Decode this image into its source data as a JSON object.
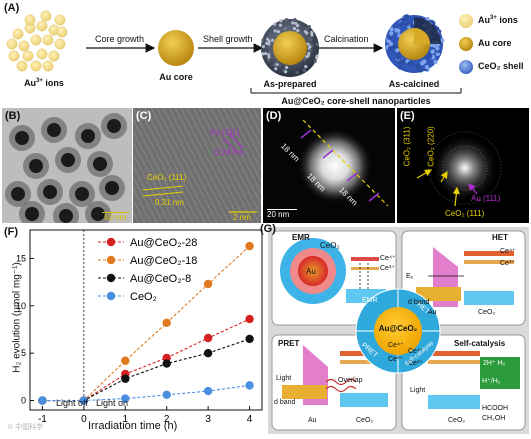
{
  "panel_a": {
    "label": "(A)",
    "au_ions": {
      "text": "Au",
      "sup": "3+",
      "rest": " ions"
    },
    "au_core": "Au core",
    "as_prepared": "As-prepared",
    "as_calcined": "As-calcined",
    "step1": "Core growth",
    "step2": "Shell growth",
    "step3": "Calcination",
    "bracket_caption": "Au@CeO₂ core-shell nanoparticles",
    "legend": [
      {
        "text": "Au",
        "sup": "3+",
        "rest": " ions",
        "color": "#f7e08a"
      },
      {
        "text": "Au core",
        "sup": "",
        "rest": "",
        "color": "#c99f1c"
      },
      {
        "text": "CeO₂ shell",
        "sup": "",
        "rest": "",
        "color": "#5a86e0"
      }
    ]
  },
  "panel_b": {
    "label": "(B)",
    "scale": "50 nm"
  },
  "panel_c": {
    "label": "(C)",
    "au_plane": "Au (111)",
    "au_d": "0.24 nm",
    "ceo2_plane": "CeO₂ (111)",
    "ceo2_d": "0.31 nm",
    "scale": "2 nm"
  },
  "panel_d": {
    "label": "(D)",
    "dim1": "18 nm",
    "dim2": "18 nm",
    "dim3": "18 nm",
    "scale": "20 nm"
  },
  "panel_e": {
    "label": "(E)",
    "r1": "CeO₂ (311)",
    "r2": "CeO₂ (220)",
    "r3": "Au (111)",
    "r4": "CeO₂ (111)"
  },
  "panel_f": {
    "label": "(F)",
    "ylabel": "H₂ evolution (μmol mg⁻¹)",
    "xlabel": "Irradiation time (h)",
    "light_off": "Light off",
    "light_on": "Light on"
  },
  "chart_data": {
    "type": "line",
    "x": [
      -1,
      0,
      1,
      2,
      3,
      4
    ],
    "xlim": [
      -1.3,
      4.3
    ],
    "ylim": [
      -1,
      18
    ],
    "yticks": [
      0,
      5,
      10,
      15
    ],
    "xticks": [
      -1,
      0,
      1,
      2,
      3,
      4
    ],
    "xlabel": "Irradiation time (h)",
    "ylabel": "H₂ evolution (μmol mg⁻¹)",
    "legend_position": "top-left",
    "series": [
      {
        "name": "Au@CeO₂-28",
        "color": "#d42020",
        "values": [
          0,
          0,
          2.8,
          4.5,
          6.6,
          8.6
        ]
      },
      {
        "name": "Au@CeO₂-18",
        "color": "#e07a1e",
        "values": [
          0,
          0,
          4.2,
          8.2,
          12.3,
          16.3
        ]
      },
      {
        "name": "Au@CeO₂-8",
        "color": "#111111",
        "values": [
          0,
          0,
          2.3,
          3.9,
          5.0,
          6.5
        ]
      },
      {
        "name": "CeO₂",
        "color": "#4a8fe0",
        "values": [
          0,
          0,
          0.2,
          0.6,
          1.0,
          1.6
        ]
      }
    ]
  },
  "panel_g": {
    "label": "(G)",
    "emr": "EMR",
    "het": "HET",
    "pret": "PRET",
    "selfcat": "Self-catalysis",
    "center": "Au@CeO₂",
    "ring_emr": "EMR",
    "ring_het": "HET",
    "ring_pret": "PRET",
    "ring_self": "Self-catalysis",
    "ceo2": "CeO₂",
    "au": "Au",
    "ce4": "Ce⁴⁺",
    "ce3": "Ce³⁺",
    "ef": "Eₓ",
    "ev": "Eᵥ",
    "dband": "d band",
    "light": "Light",
    "overlap": "Overlap",
    "eminus": "e⁻",
    "hplus": "h⁺",
    "h2reaction": "2H⁺ H₂",
    "hcooh": "HCOOH",
    "ch2oh": "CH₂OH",
    "hh2": "H⁺/H₂"
  },
  "watermark": "© 中国科学"
}
